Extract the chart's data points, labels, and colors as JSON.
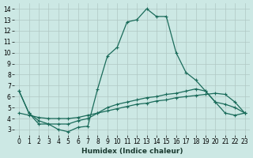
{
  "xlabel": "Humidex (Indice chaleur)",
  "background_color": "#cce8e4",
  "grid_color": "#b0c8c4",
  "line_color": "#1a6b5a",
  "x_ticks": [
    0,
    1,
    2,
    3,
    4,
    5,
    6,
    7,
    8,
    9,
    10,
    11,
    12,
    13,
    14,
    15,
    16,
    17,
    18,
    19,
    20,
    21,
    22,
    23
  ],
  "y_ticks": [
    3,
    4,
    5,
    6,
    7,
    8,
    9,
    10,
    11,
    12,
    13,
    14
  ],
  "xlim": [
    -0.5,
    23.5
  ],
  "ylim": [
    2.5,
    14.5
  ],
  "series_main_x": [
    0,
    1,
    2,
    3,
    4,
    5,
    6,
    7,
    8,
    9,
    10,
    11,
    12,
    13,
    14,
    15,
    16,
    17,
    18,
    19,
    20,
    21,
    22,
    23
  ],
  "series_main_y": [
    6.5,
    4.5,
    3.5,
    3.5,
    3.0,
    2.8,
    3.2,
    3.3,
    6.7,
    9.7,
    10.5,
    12.8,
    13.0,
    14.0,
    13.3,
    13.3,
    10.0,
    8.2,
    7.5,
    6.5,
    5.5,
    4.5,
    4.3,
    4.5
  ],
  "series_diag1_x": [
    0,
    1,
    2,
    3,
    4,
    5,
    6,
    7,
    8,
    9,
    10,
    11,
    12,
    13,
    14,
    15,
    16,
    17,
    18,
    19,
    20,
    21,
    22,
    23
  ],
  "series_diag1_y": [
    4.5,
    4.3,
    4.1,
    4.0,
    4.0,
    4.0,
    4.1,
    4.3,
    4.5,
    4.7,
    4.9,
    5.1,
    5.3,
    5.4,
    5.6,
    5.7,
    5.9,
    6.0,
    6.1,
    6.2,
    6.3,
    6.2,
    5.5,
    4.5
  ],
  "series_diag2_x": [
    0,
    1,
    2,
    3,
    4,
    5,
    6,
    7,
    8,
    9,
    10,
    11,
    12,
    13,
    14,
    15,
    16,
    17,
    18,
    19,
    20,
    21,
    22,
    23
  ],
  "series_diag2_y": [
    6.5,
    4.5,
    3.8,
    3.5,
    3.5,
    3.5,
    3.8,
    4.0,
    4.5,
    5.0,
    5.3,
    5.5,
    5.7,
    5.9,
    6.0,
    6.2,
    6.3,
    6.5,
    6.7,
    6.5,
    5.5,
    5.3,
    5.0,
    4.5
  ],
  "marker": "+",
  "marker_size": 3,
  "linewidth": 0.9
}
